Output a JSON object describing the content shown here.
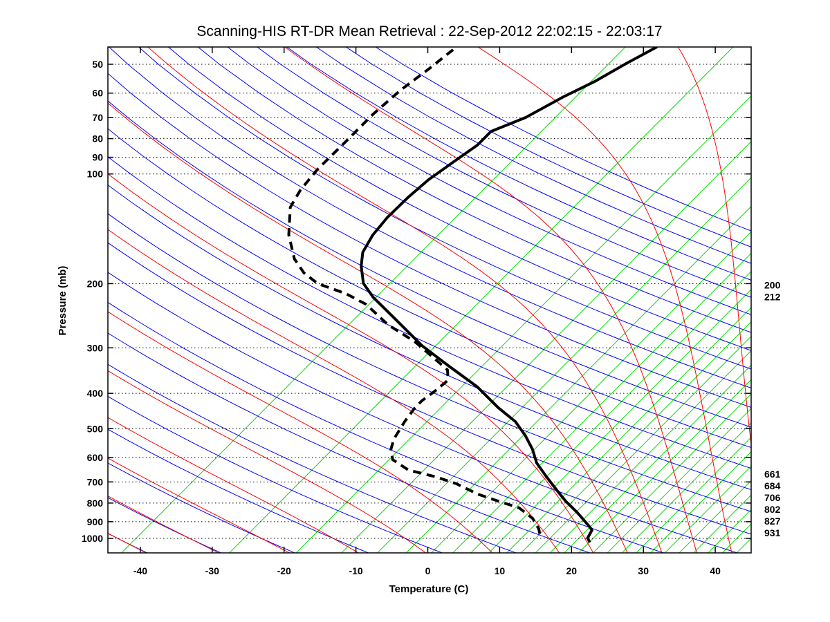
{
  "chart_data": {
    "type": "line",
    "subtype": "skew-t log-p",
    "title": "Scanning-HIS RT-DR Mean Retrieval : 22-Sep-2012 22:02:15 - 22:03:17",
    "xlabel": "Temperature (C)",
    "ylabel": "Pressure (mb)",
    "xlim": [
      -45,
      45
    ],
    "ylim": [
      1100,
      45
    ],
    "skew_degC_per_decade": 50.5,
    "x_ticks": [
      -40,
      -30,
      -20,
      -10,
      0,
      10,
      20,
      30,
      40
    ],
    "x_tick_labels": [
      "-40",
      "-30",
      "-20",
      "-10",
      "0",
      "10",
      "20",
      "30",
      "40"
    ],
    "y_ticks": [
      50,
      60,
      70,
      80,
      90,
      100,
      200,
      300,
      400,
      500,
      600,
      700,
      800,
      900,
      1000
    ],
    "y_tick_labels": [
      "50",
      "60",
      "70",
      "80",
      "90",
      "100",
      "200",
      "300",
      "400",
      "500",
      "600",
      "700",
      "800",
      "900",
      "1000"
    ],
    "right_labels": [
      {
        "p": 200,
        "text": "200"
      },
      {
        "p": 212,
        "text": "212"
      },
      {
        "p": 661,
        "text": "661"
      },
      {
        "p": 684,
        "text": "684"
      },
      {
        "p": 706,
        "text": "706"
      },
      {
        "p": 802,
        "text": "802"
      },
      {
        "p": 827,
        "text": "827"
      },
      {
        "p": 931,
        "text": "931"
      }
    ],
    "grid": "horizontal dotted at pressure ticks",
    "colors": {
      "dry_adiabat": "#0000ff",
      "moist_adiabat": "#ff0000",
      "green_lines": "#00dd00",
      "temperature": "#000000",
      "dewpoint": "#000000"
    },
    "dry_adiabats_theta_K": [
      230,
      240,
      250,
      260,
      270,
      280,
      290,
      300,
      310,
      320,
      330,
      340,
      350,
      360,
      370,
      380,
      390,
      400,
      410,
      420,
      430,
      440,
      450,
      460,
      470,
      480
    ],
    "moist_adiabats_theta_K": [
      230,
      240,
      250,
      260,
      270,
      280,
      290,
      295,
      300,
      305,
      310,
      315,
      320,
      325,
      330,
      335,
      340,
      345,
      350,
      355,
      360
    ],
    "green_lines_T_at_1000": [
      -40.6,
      -25.6,
      -16.3,
      -10,
      -5,
      -1,
      2.5,
      5.5,
      8,
      10.5,
      13,
      15,
      17,
      19,
      21,
      23,
      25,
      27,
      29,
      31,
      33,
      35,
      37,
      39,
      41,
      43,
      45
    ],
    "series": [
      {
        "name": "Temperature",
        "style": "solid",
        "pressure": [
          44.8,
          49.8,
          55.8,
          61.4,
          70.0,
          76.4,
          83.3,
          92.9,
          103.7,
          115.7,
          131.9,
          147.1,
          164,
          179,
          199.6,
          218,
          248,
          296,
          337,
          384,
          438,
          478,
          522,
          569,
          621,
          678,
          740,
          790,
          851,
          920,
          949,
          998,
          1026
        ],
        "temperature": [
          -36.2,
          -38.2,
          -40.1,
          -42.3,
          -44.7,
          -47.6,
          -47.6,
          -48.6,
          -49.6,
          -50.0,
          -50.1,
          -49.7,
          -48.7,
          -47.0,
          -44.3,
          -41.0,
          -35.3,
          -27.5,
          -20.9,
          -14.1,
          -8.3,
          -4.0,
          -0.7,
          2.2,
          4.7,
          8.0,
          11.4,
          14.0,
          17.3,
          20.5,
          21.7,
          22.2,
          23.1
        ]
      },
      {
        "name": "Dewpoint",
        "style": "dashed",
        "pressure": [
          45.6,
          51.5,
          58.8,
          68.5,
          81.5,
          97.1,
          110.7,
          123.5,
          147,
          171,
          187,
          200,
          213,
          228,
          259,
          289,
          323,
          345,
          368,
          393,
          419,
          438,
          478,
          533,
          569,
          608,
          649,
          678,
          708,
          756,
          790,
          825,
          881,
          941,
          1004
        ],
        "temperature": [
          -64.2,
          -64.9,
          -65.9,
          -66.4,
          -66.4,
          -66.5,
          -66.0,
          -65.0,
          -61.4,
          -57.3,
          -54.0,
          -50.6,
          -45.3,
          -41.0,
          -35.2,
          -29.0,
          -23.7,
          -20.6,
          -19.1,
          -19.4,
          -19.9,
          -19.9,
          -19.4,
          -18.5,
          -17.5,
          -15.8,
          -12.2,
          -7.4,
          -3.6,
          0.8,
          4.6,
          8.5,
          11.8,
          14.1,
          15.8
        ]
      }
    ]
  }
}
